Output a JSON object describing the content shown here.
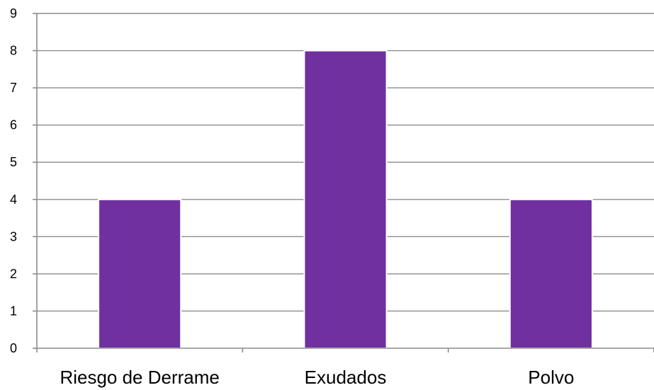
{
  "chart_data": {
    "type": "bar",
    "categories": [
      "Riesgo de Derrame",
      "Exudados",
      "Polvo"
    ],
    "values": [
      4,
      8,
      4
    ],
    "title": "",
    "xlabel": "",
    "ylabel": "",
    "ylim": [
      0,
      9
    ],
    "yticks": [
      "0",
      "1",
      "2",
      "3",
      "4",
      "5",
      "6",
      "7",
      "8",
      "9"
    ],
    "grid": true,
    "legend": "none",
    "bar_color": "#7030A0",
    "grid_color": "#8C8C8C"
  }
}
